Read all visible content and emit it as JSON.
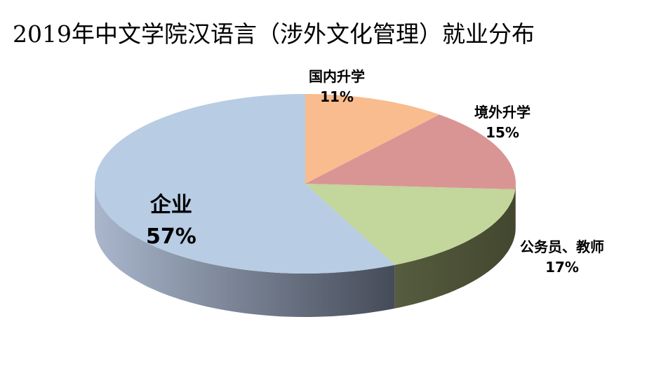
{
  "title": "2019年中文学院汉语言（涉外文化管理）就业分布",
  "chart_data": {
    "type": "pie",
    "style": "3d",
    "title": "2019年中文学院汉语言（涉外文化管理）就业分布",
    "categories": [
      "国内升学",
      "境外升学",
      "公务员、教师",
      "企业"
    ],
    "values": [
      11,
      15,
      17,
      57
    ],
    "labels": [
      "11%",
      "15%",
      "17%",
      "57%"
    ],
    "colors": [
      "#f8bc8e",
      "#d99594",
      "#c3d69b",
      "#b8cce4"
    ],
    "side_colors": [
      "#b88a66",
      "#a06e6d",
      "#4e5438",
      "#5a6478"
    ],
    "start": "top",
    "direction": "clockwise",
    "legend": "none"
  }
}
